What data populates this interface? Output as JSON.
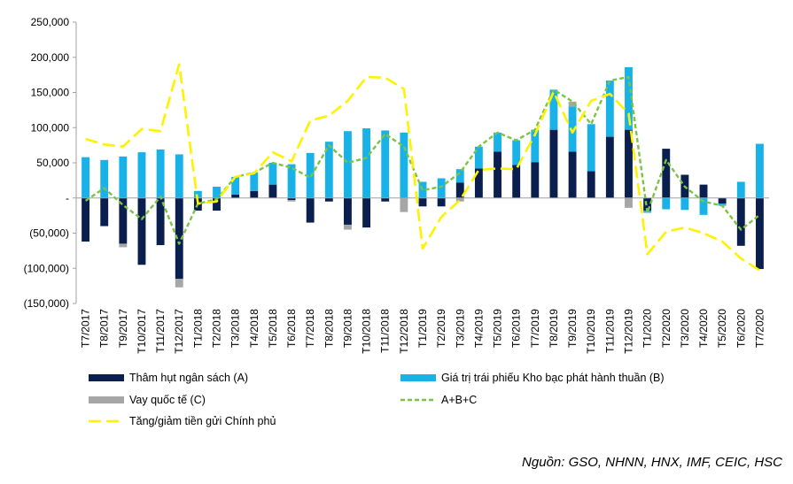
{
  "chart_data": {
    "type": "bar",
    "categories": [
      "T7/2017",
      "T8/2017",
      "T9/2017",
      "T10/2017",
      "T11/2017",
      "T12/2017",
      "T1/2018",
      "T2/2018",
      "T3/2018",
      "T4/2018",
      "T5/2018",
      "T6/2018",
      "T7/2018",
      "T8/2018",
      "T9/2018",
      "T10/2018",
      "T11/2018",
      "T12/2018",
      "T1/2019",
      "T2/2019",
      "T3/2019",
      "T4/2019",
      "T5/2019",
      "T6/2019",
      "T7/2019",
      "T8/2019",
      "T9/2019",
      "T10/2019",
      "T11/2019",
      "T12/2019",
      "T1/2020",
      "T2/2020",
      "T3/2020",
      "T4/2020",
      "T5/2020",
      "T6/2020",
      "T7/2020"
    ],
    "ylim": [
      -150000,
      250000
    ],
    "yticks": [
      250000,
      200000,
      150000,
      100000,
      50000,
      0,
      -50000,
      -100000,
      -150000
    ],
    "ytick_labels": [
      "250,000",
      "200,000",
      "150,000",
      "100,000",
      "50,000",
      "-",
      "(50,000)",
      "(100,000)",
      "(150,000)"
    ],
    "series": [
      {
        "name": "Thâm hụt ngân sách (A)",
        "kind": "bar",
        "color": "#0b1f4f",
        "values": [
          -62000,
          -40000,
          -65000,
          -95000,
          -67000,
          -115000,
          -18000,
          -18000,
          5000,
          10000,
          19000,
          -3000,
          -35000,
          -5000,
          -38000,
          -42000,
          -5000,
          0,
          -12000,
          -12000,
          22000,
          42000,
          66000,
          47000,
          51000,
          97000,
          66000,
          38000,
          87000,
          97000,
          -18000,
          70000,
          33000,
          19000,
          -8000,
          -68000,
          -101000
        ]
      },
      {
        "name": "Giá trị trái phiếu Kho bạc phát hành thuần (B)",
        "kind": "bar",
        "color": "#19b2e8",
        "values": [
          58000,
          54000,
          59000,
          65000,
          69000,
          62000,
          10000,
          16000,
          25000,
          26000,
          31000,
          48000,
          64000,
          80000,
          95000,
          99000,
          96000,
          93000,
          23000,
          28000,
          19000,
          31000,
          27000,
          35000,
          46000,
          57000,
          64000,
          67000,
          80000,
          89000,
          -3000,
          -16000,
          -17000,
          -24000,
          -3000,
          23000,
          77000
        ]
      },
      {
        "name": "Vay quốc tế (C)",
        "kind": "bar",
        "color": "#a6a6a6",
        "values": [
          0,
          0,
          -5000,
          0,
          0,
          -12000,
          0,
          0,
          0,
          0,
          0,
          -2000,
          0,
          0,
          -7000,
          0,
          0,
          -20000,
          0,
          0,
          -5000,
          0,
          0,
          0,
          0,
          0,
          7000,
          0,
          0,
          -14000,
          0,
          0,
          0,
          0,
          0,
          0,
          0
        ]
      },
      {
        "name": "A+B+C",
        "kind": "line",
        "color": "#7bc443",
        "values": [
          -4000,
          14000,
          -10000,
          -30000,
          2000,
          -65000,
          -8000,
          -2000,
          30000,
          36000,
          50000,
          43000,
          29000,
          75000,
          50000,
          57000,
          91000,
          73000,
          11000,
          16000,
          36000,
          73000,
          93000,
          82000,
          97000,
          154000,
          137000,
          105000,
          167000,
          172000,
          -21000,
          54000,
          16000,
          -5000,
          -11000,
          -45000,
          -24000
        ]
      },
      {
        "name": "Tăng/giảm tiền gửi Chính phủ",
        "kind": "line",
        "color": "#fff200",
        "values": [
          84000,
          76000,
          73000,
          98000,
          95000,
          190000,
          -8000,
          -5000,
          30000,
          35000,
          65000,
          52000,
          110000,
          117000,
          138000,
          172000,
          171000,
          155000,
          -72000,
          -27000,
          -3000,
          40000,
          42000,
          41000,
          90000,
          151000,
          93000,
          138000,
          148000,
          120000,
          -80000,
          -48000,
          -42000,
          -50000,
          -62000,
          -86000,
          -103000
        ]
      }
    ],
    "legend_position": "bottom",
    "source": "Nguồn: GSO, NHNN, HNX, IMF, CEIC, HSC"
  }
}
